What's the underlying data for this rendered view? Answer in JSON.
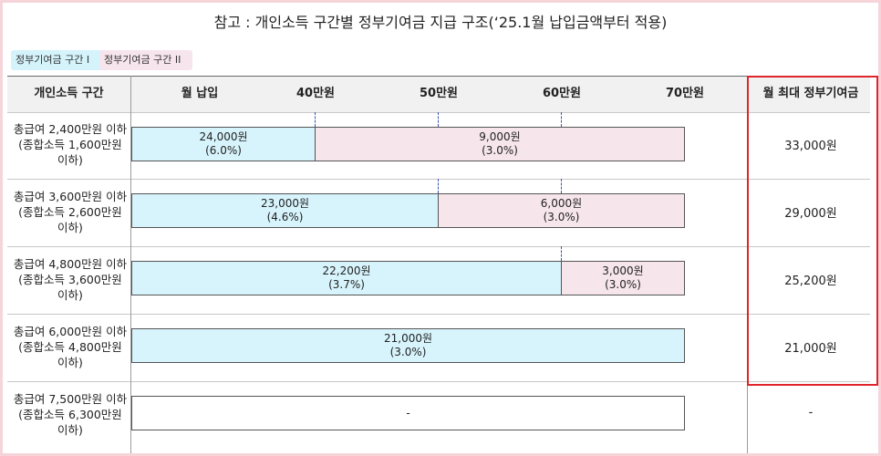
{
  "title": "참고 : 개인소득 구간별 정부기여금 지급 구조(‘25.1월 납입금액부터 적용)",
  "legend": {
    "tier1": "정부기여금 구간 I",
    "tier2": "정부기여금 구간 II"
  },
  "colors": {
    "tier1": "#d7f4fc",
    "tier2": "#f6e6ec",
    "highlight_border": "#e0262c",
    "threshold_dash": "#3a55b8"
  },
  "header": {
    "income_band": "개인소득 구간",
    "monthly_payment": "월 납입",
    "ticks": [
      "40만원",
      "50만원",
      "60만원",
      "70만원"
    ],
    "max_contribution": "월 최대 정부기여금"
  },
  "rows": [
    {
      "label_lines": [
        "총급여 2,400만원 이하",
        "(종합소득 1,600만원",
        "이하)"
      ],
      "segments": [
        {
          "tier": 1,
          "amount": "24,000원",
          "rate": "(6.0%)"
        },
        {
          "tier": 2,
          "amount": "9,000원",
          "rate": "(3.0%)"
        }
      ],
      "max": "33,000원"
    },
    {
      "label_lines": [
        "총급여 3,600만원 이하",
        "(종합소득 2,600만원",
        "이하)"
      ],
      "segments": [
        {
          "tier": 1,
          "amount": "23,000원",
          "rate": "(4.6%)"
        },
        {
          "tier": 2,
          "amount": "6,000원",
          "rate": "(3.0%)"
        }
      ],
      "max": "29,000원"
    },
    {
      "label_lines": [
        "총급여 4,800만원 이하",
        "(종합소득 3,600만원",
        "이하)"
      ],
      "segments": [
        {
          "tier": 1,
          "amount": "22,200원",
          "rate": "(3.7%)"
        },
        {
          "tier": 2,
          "amount": "3,000원",
          "rate": "(3.0%)"
        }
      ],
      "max": "25,200원"
    },
    {
      "label_lines": [
        "총급여 6,000만원 이하",
        "(종합소득 4,800만원",
        "이하)"
      ],
      "segments": [
        {
          "tier": 1,
          "amount": "21,000원",
          "rate": "(3.0%)"
        }
      ],
      "max": "21,000원"
    },
    {
      "label_lines": [
        "총급여 7,500만원 이하",
        "(종합소득 6,300만원",
        "이하)"
      ],
      "segments": [
        {
          "tier": 0,
          "amount": "-",
          "rate": ""
        }
      ],
      "max": "-"
    }
  ]
}
